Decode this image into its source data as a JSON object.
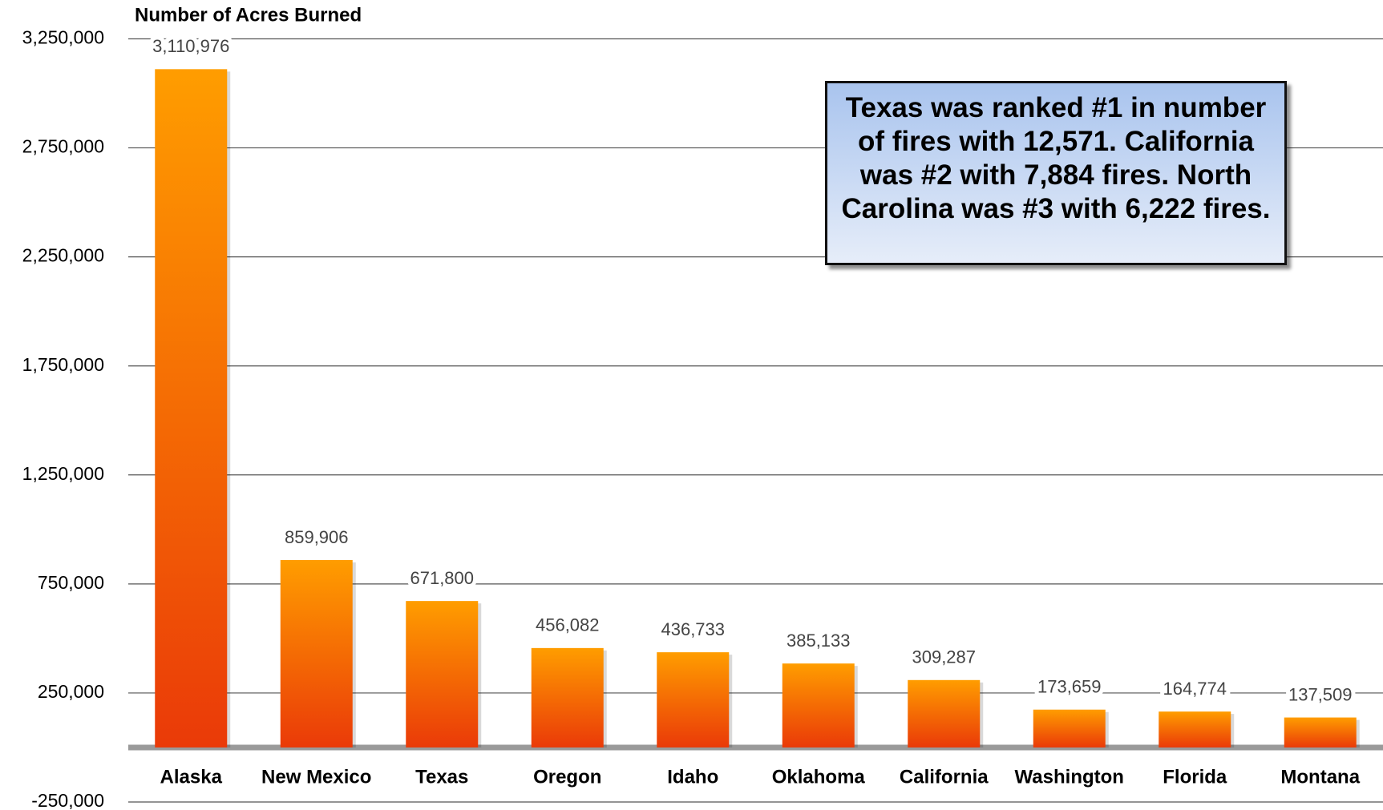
{
  "chart_data": {
    "type": "bar",
    "title": "Number of Acres Burned",
    "annotation": "Texas was ranked #1 in number of fires with 12,571. California was #2 with 7,884 fires. North Carolina was #3 with 6,222 fires.",
    "categories": [
      "Alaska",
      "New Mexico",
      "Texas",
      "Oregon",
      "Idaho",
      "Oklahoma",
      "California",
      "Washington",
      "Florida",
      "Montana"
    ],
    "values": [
      3110976,
      859906,
      671800,
      456082,
      436733,
      385133,
      309287,
      173659,
      164774,
      137509
    ],
    "value_labels": [
      "3,110,976",
      "859,906",
      "671,800",
      "456,082",
      "436,733",
      "385,133",
      "309,287",
      "173,659",
      "164,774",
      "137,509"
    ],
    "color": [
      "#ff9d00",
      "#ea3a08"
    ],
    "ylim": [
      -250000,
      3250000
    ],
    "yticks": [
      {
        "value": -250000,
        "label": "-250,000"
      },
      {
        "value": 250000,
        "label": "250,000"
      },
      {
        "value": 750000,
        "label": "750,000"
      },
      {
        "value": 1250000,
        "label": "1,250,000"
      },
      {
        "value": 1750000,
        "label": "1,750,000"
      },
      {
        "value": 2250000,
        "label": "2,250,000"
      },
      {
        "value": 2750000,
        "label": "2,750,000"
      },
      {
        "value": 3250000,
        "label": "3,250,000"
      }
    ],
    "grid": true
  }
}
